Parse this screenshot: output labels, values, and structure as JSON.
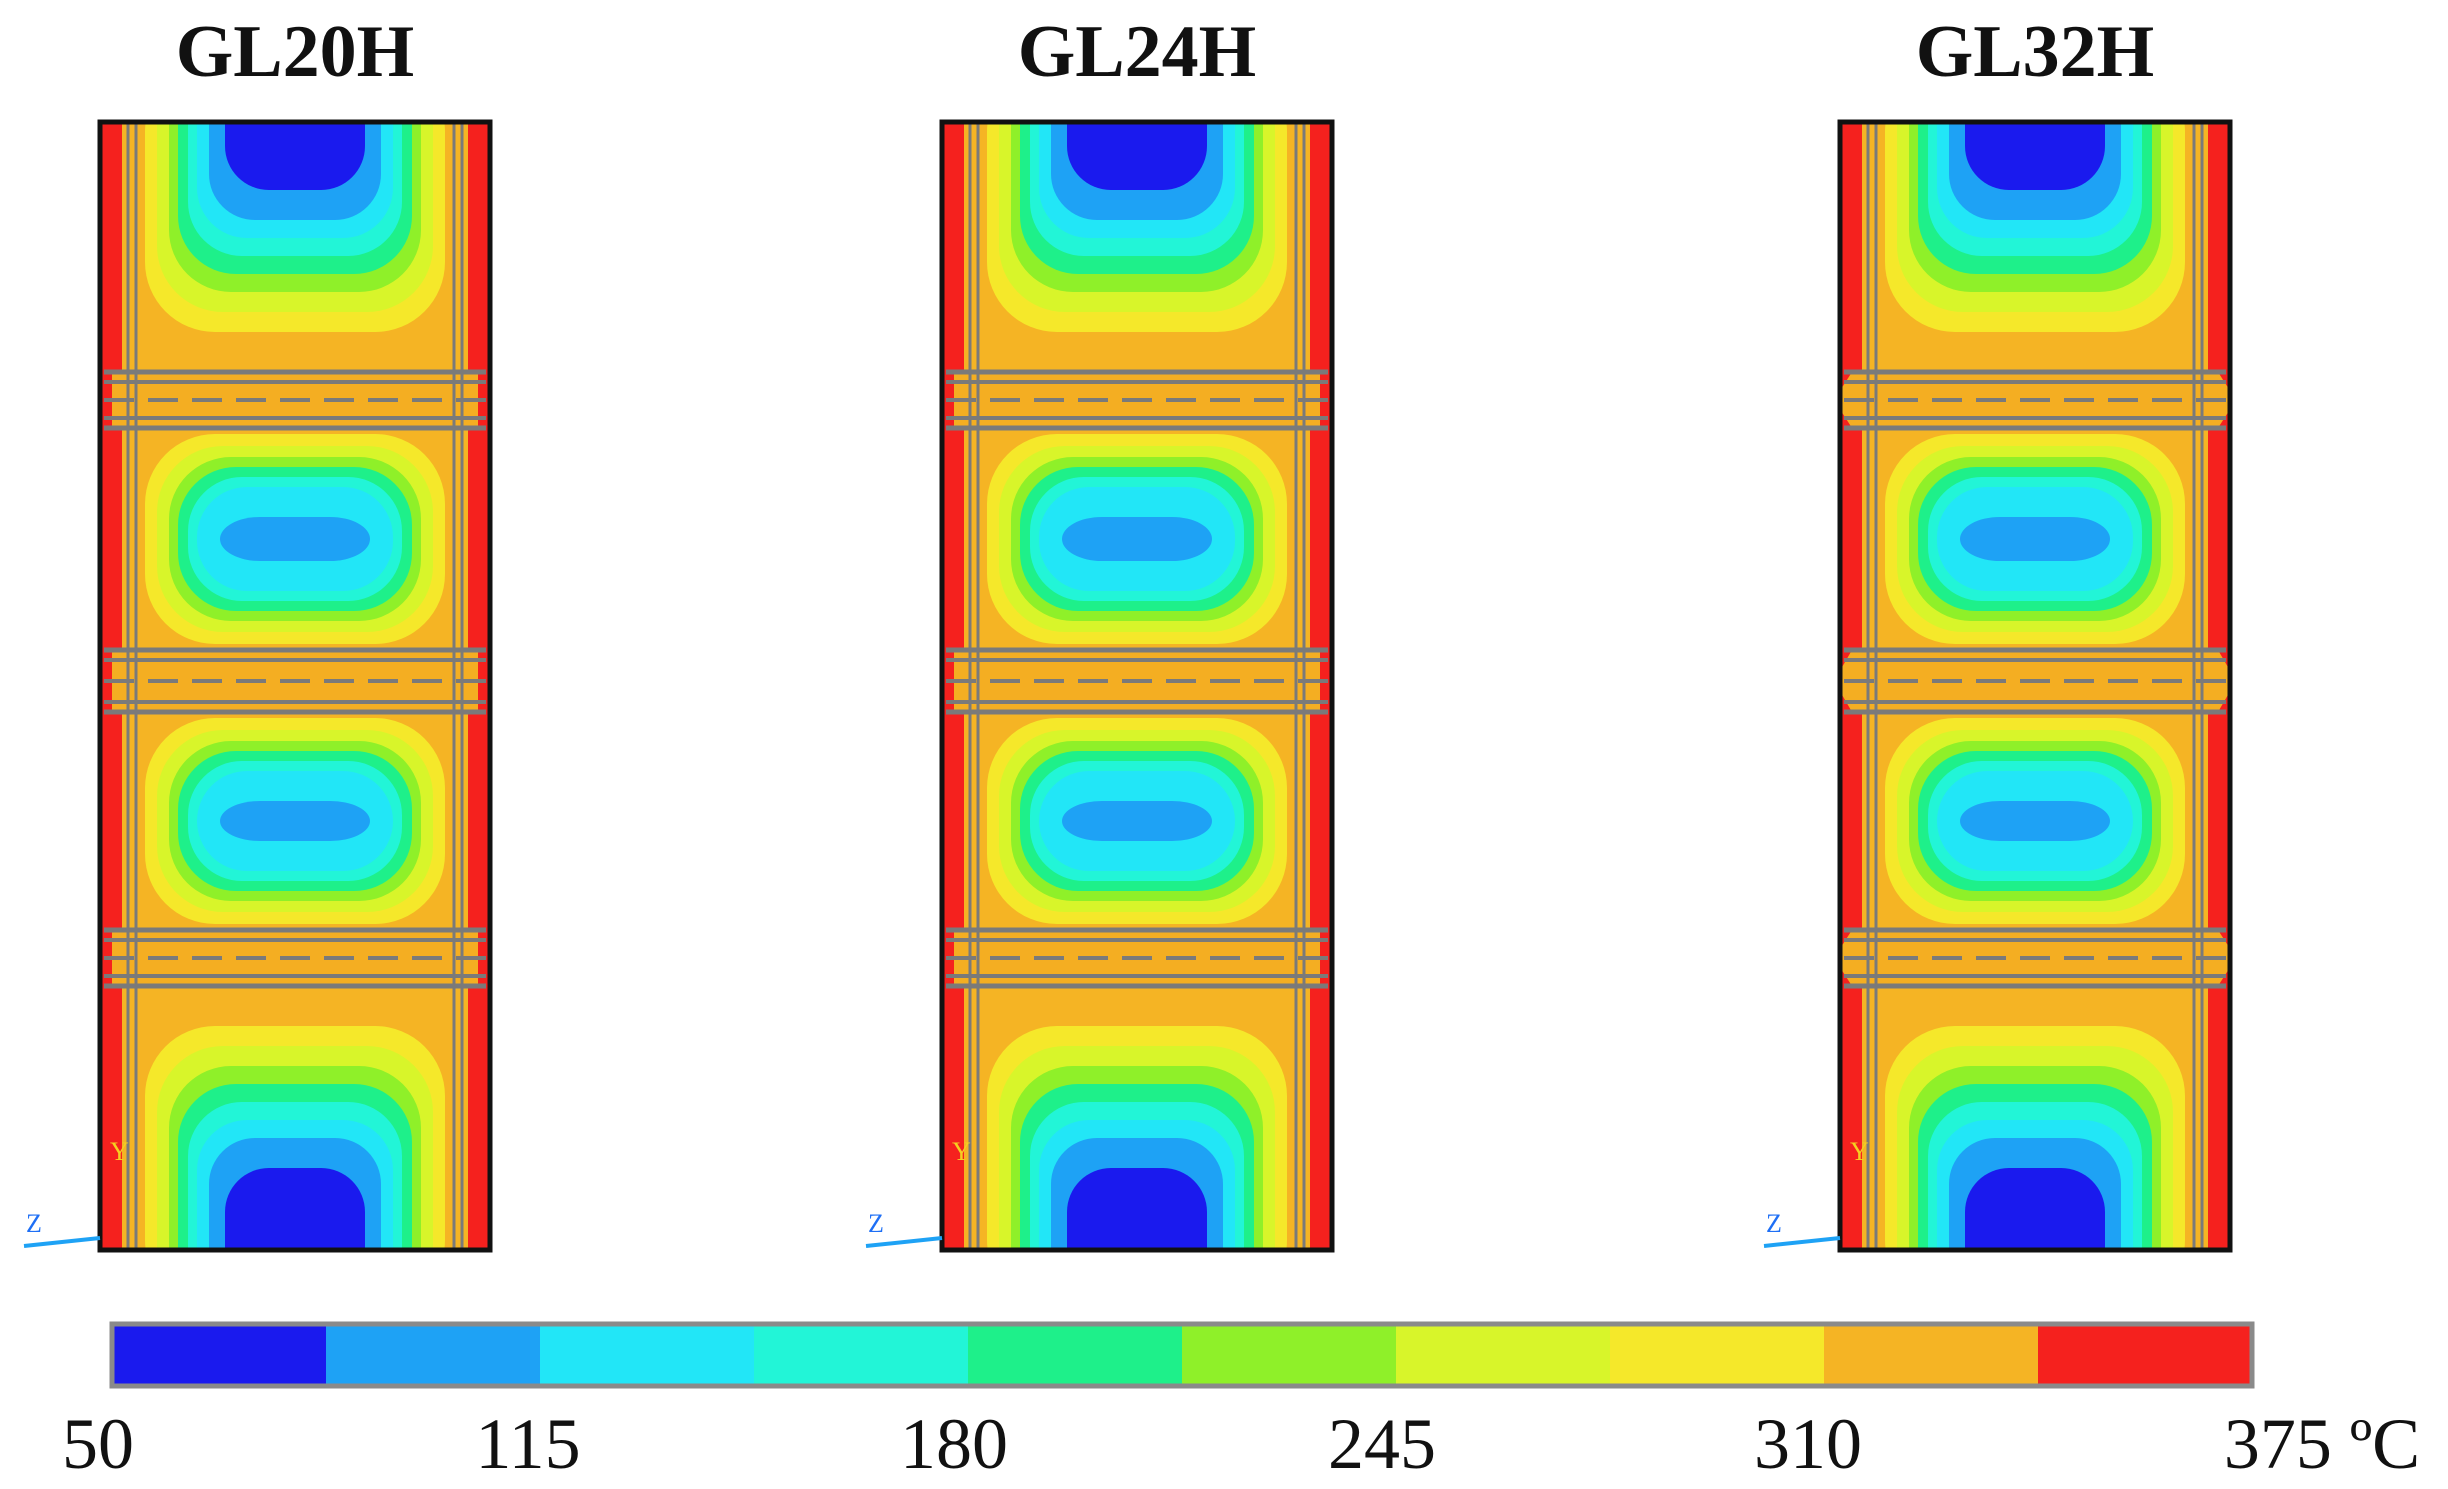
{
  "panels": [
    {
      "title": "GL20H"
    },
    {
      "title": "GL24H"
    },
    {
      "title": "GL32H"
    }
  ],
  "axis_triad": {
    "y_label": "Y",
    "z_label": "Z"
  },
  "colorbar": {
    "colors": [
      "#1a1aee",
      "#1ea2f5",
      "#22e6f7",
      "#22f5d7",
      "#1ef08a",
      "#8ff029",
      "#d8f52a",
      "#f5e82a",
      "#f5b424",
      "#f5211e"
    ],
    "tick_labels": [
      "50",
      "115",
      "180",
      "245",
      "310",
      "375 ºC"
    ],
    "min": 50,
    "max": 375,
    "unit": "ºC"
  },
  "colors": {
    "frame": "#111111",
    "steel_line": "#7a7a7a",
    "plate_fill": "#f4ae22"
  }
}
